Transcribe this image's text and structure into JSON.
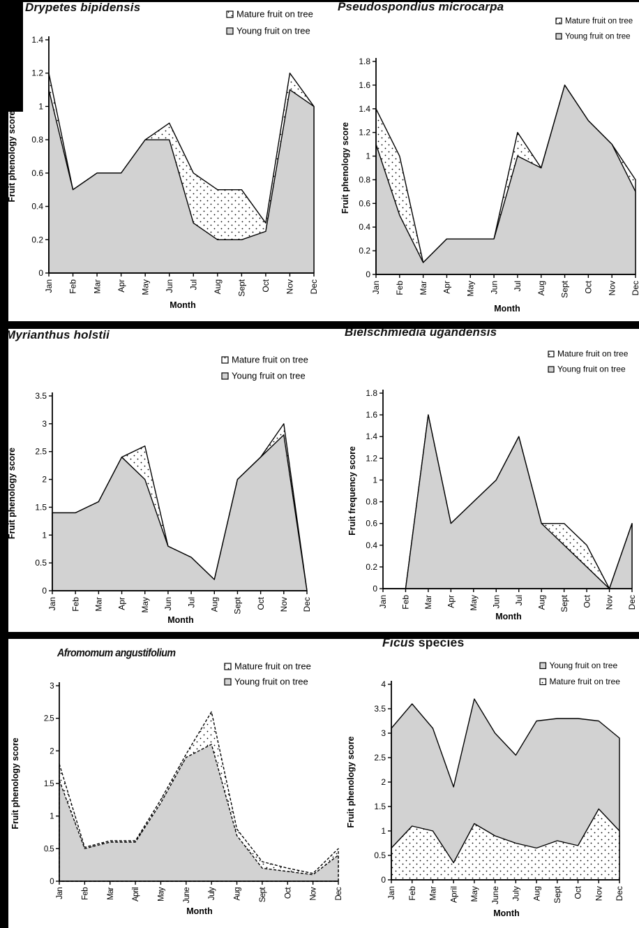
{
  "page": {
    "background_color": "#ffffff",
    "frame_color": "#000000",
    "area_gray": "#d2d2d2",
    "line_color": "#000000"
  },
  "chart_data": [
    {
      "id": "drypetes-bipidensis",
      "type": "area",
      "title": "Drypetes bipidensis",
      "xlabel": "Month",
      "ylabel": "Fruit phenology score",
      "ylim": [
        0,
        1.4
      ],
      "ytick_step": 0.2,
      "months": [
        "Jan",
        "Feb",
        "Mar",
        "Apr",
        "May",
        "Jun",
        "Jul",
        "Aug",
        "Sept",
        "Oct",
        "Nov",
        "Dec"
      ],
      "legend_position": "top-right",
      "series": [
        {
          "name": "Mature fruit on tree",
          "fill": "dots",
          "values": [
            1.2,
            0.5,
            0.6,
            0.6,
            0.8,
            0.9,
            0.6,
            0.5,
            0.5,
            0.3,
            1.2,
            1.0
          ]
        },
        {
          "name": "Young fruit on tree",
          "fill": "gray",
          "values": [
            1.1,
            0.5,
            0.6,
            0.6,
            0.8,
            0.8,
            0.3,
            0.2,
            0.2,
            0.25,
            1.1,
            1.0
          ]
        }
      ]
    },
    {
      "id": "pseudospondius-microcarpa",
      "type": "area",
      "title": "Pseudospondius microcarpa",
      "xlabel": "Month",
      "ylabel": "Fruit phenology score",
      "ylim": [
        0,
        1.8
      ],
      "ytick_step": 0.2,
      "months": [
        "Jan",
        "Feb",
        "Mar",
        "Apr",
        "May",
        "Jun",
        "Jul",
        "Aug",
        "Sept",
        "Oct",
        "Nov",
        "Dec"
      ],
      "legend_position": "top-right",
      "series": [
        {
          "name": "Mature fruit on tree",
          "fill": "dots",
          "values": [
            1.4,
            1.0,
            0.1,
            0.3,
            0.3,
            0.3,
            1.2,
            0.9,
            1.6,
            1.3,
            1.1,
            0.8
          ]
        },
        {
          "name": "Young fruit on tree",
          "fill": "gray",
          "values": [
            1.1,
            0.5,
            0.1,
            0.3,
            0.3,
            0.3,
            1.0,
            0.9,
            1.6,
            1.3,
            1.1,
            0.7
          ]
        }
      ]
    },
    {
      "id": "myrianthus-holstii",
      "type": "area",
      "title": "Myrianthus holstii",
      "xlabel": "Month",
      "ylabel": "Fruit phenology score",
      "ylim": [
        0,
        3.5
      ],
      "ytick_step": 0.5,
      "months": [
        "Jan",
        "Feb",
        "Mar",
        "Apr",
        "May",
        "Jun",
        "Jul",
        "Aug",
        "Sept",
        "Oct",
        "Nov",
        "Dec"
      ],
      "legend_position": "top-right",
      "series": [
        {
          "name": "Mature fruit on tree",
          "fill": "dots",
          "values": [
            1.4,
            1.4,
            1.6,
            2.4,
            2.6,
            0.8,
            0.6,
            0.2,
            2.0,
            2.4,
            3.0,
            0
          ]
        },
        {
          "name": "Young fruit on tree",
          "fill": "gray",
          "values": [
            1.4,
            1.4,
            1.6,
            2.4,
            2.0,
            0.8,
            0.6,
            0.2,
            2.0,
            2.4,
            2.8,
            0
          ]
        }
      ]
    },
    {
      "id": "bielschmiedia-ugandensis",
      "type": "area",
      "title": "Bielschmiedia ugandensis",
      "xlabel": "Month",
      "ylabel": "Fruit frequency score",
      "ylim": [
        0,
        1.8
      ],
      "ytick_step": 0.2,
      "months": [
        "Jan",
        "Feb",
        "Mar",
        "Apr",
        "May",
        "Jun",
        "Jul",
        "Aug",
        "Sept",
        "Oct",
        "Nov",
        "Dec"
      ],
      "legend_position": "top-right",
      "series": [
        {
          "name": "Mature fruit on tree",
          "fill": "dots",
          "values": [
            0,
            0,
            1.6,
            0.6,
            0.8,
            1.0,
            1.4,
            0.6,
            0.6,
            0.4,
            0,
            0.6
          ]
        },
        {
          "name": "Young fruit on tree",
          "fill": "gray",
          "values": [
            0,
            0,
            1.6,
            0.6,
            0.8,
            1.0,
            1.4,
            0.6,
            0.4,
            0.2,
            0,
            0.6
          ]
        }
      ]
    },
    {
      "id": "afromomum-angustifolium",
      "type": "area",
      "title": "Afromomum angustifolium",
      "xlabel": "Month",
      "ylabel": "Fruit phenology score",
      "ylim": [
        0,
        3
      ],
      "ytick_step": 0.5,
      "months": [
        "Jan",
        "Feb",
        "Mar",
        "April",
        "May",
        "June",
        "July",
        "Aug",
        "Sept",
        "Oct",
        "Nov",
        "Dec"
      ],
      "legend_position": "top-right",
      "line_style": "dashed",
      "series": [
        {
          "name": "Mature fruit on tree",
          "fill": "dots",
          "values": [
            1.8,
            0.52,
            0.62,
            0.62,
            1.25,
            1.95,
            2.6,
            0.8,
            0.3,
            0.2,
            0.12,
            0.5
          ]
        },
        {
          "name": "Young fruit on tree",
          "fill": "gray",
          "values": [
            1.55,
            0.5,
            0.6,
            0.6,
            1.2,
            1.9,
            2.1,
            0.7,
            0.2,
            0.15,
            0.1,
            0.4
          ]
        }
      ]
    },
    {
      "id": "ficus-species",
      "type": "area",
      "title": "Ficus species",
      "title_em": "Ficus",
      "title_rest": " species",
      "xlabel": "Month",
      "ylabel": "Fruit phenology score",
      "ylim": [
        0,
        4
      ],
      "ytick_step": 0.5,
      "months": [
        "Jan",
        "Feb",
        "Mar",
        "April",
        "May",
        "June",
        "July",
        "Aug",
        "Sept",
        "Oct",
        "Nov",
        "Dec"
      ],
      "legend_position": "top-right",
      "series": [
        {
          "name": "Young fruit on tree",
          "fill": "gray",
          "values": [
            3.1,
            3.6,
            3.1,
            1.9,
            3.7,
            3.0,
            2.55,
            3.25,
            3.3,
            3.3,
            3.25,
            2.9
          ]
        },
        {
          "name": "Mature fruit on tree",
          "fill": "dots",
          "values": [
            0.65,
            1.1,
            1.0,
            0.35,
            1.15,
            0.9,
            0.75,
            0.65,
            0.8,
            0.7,
            1.45,
            1.0
          ]
        }
      ]
    }
  ]
}
